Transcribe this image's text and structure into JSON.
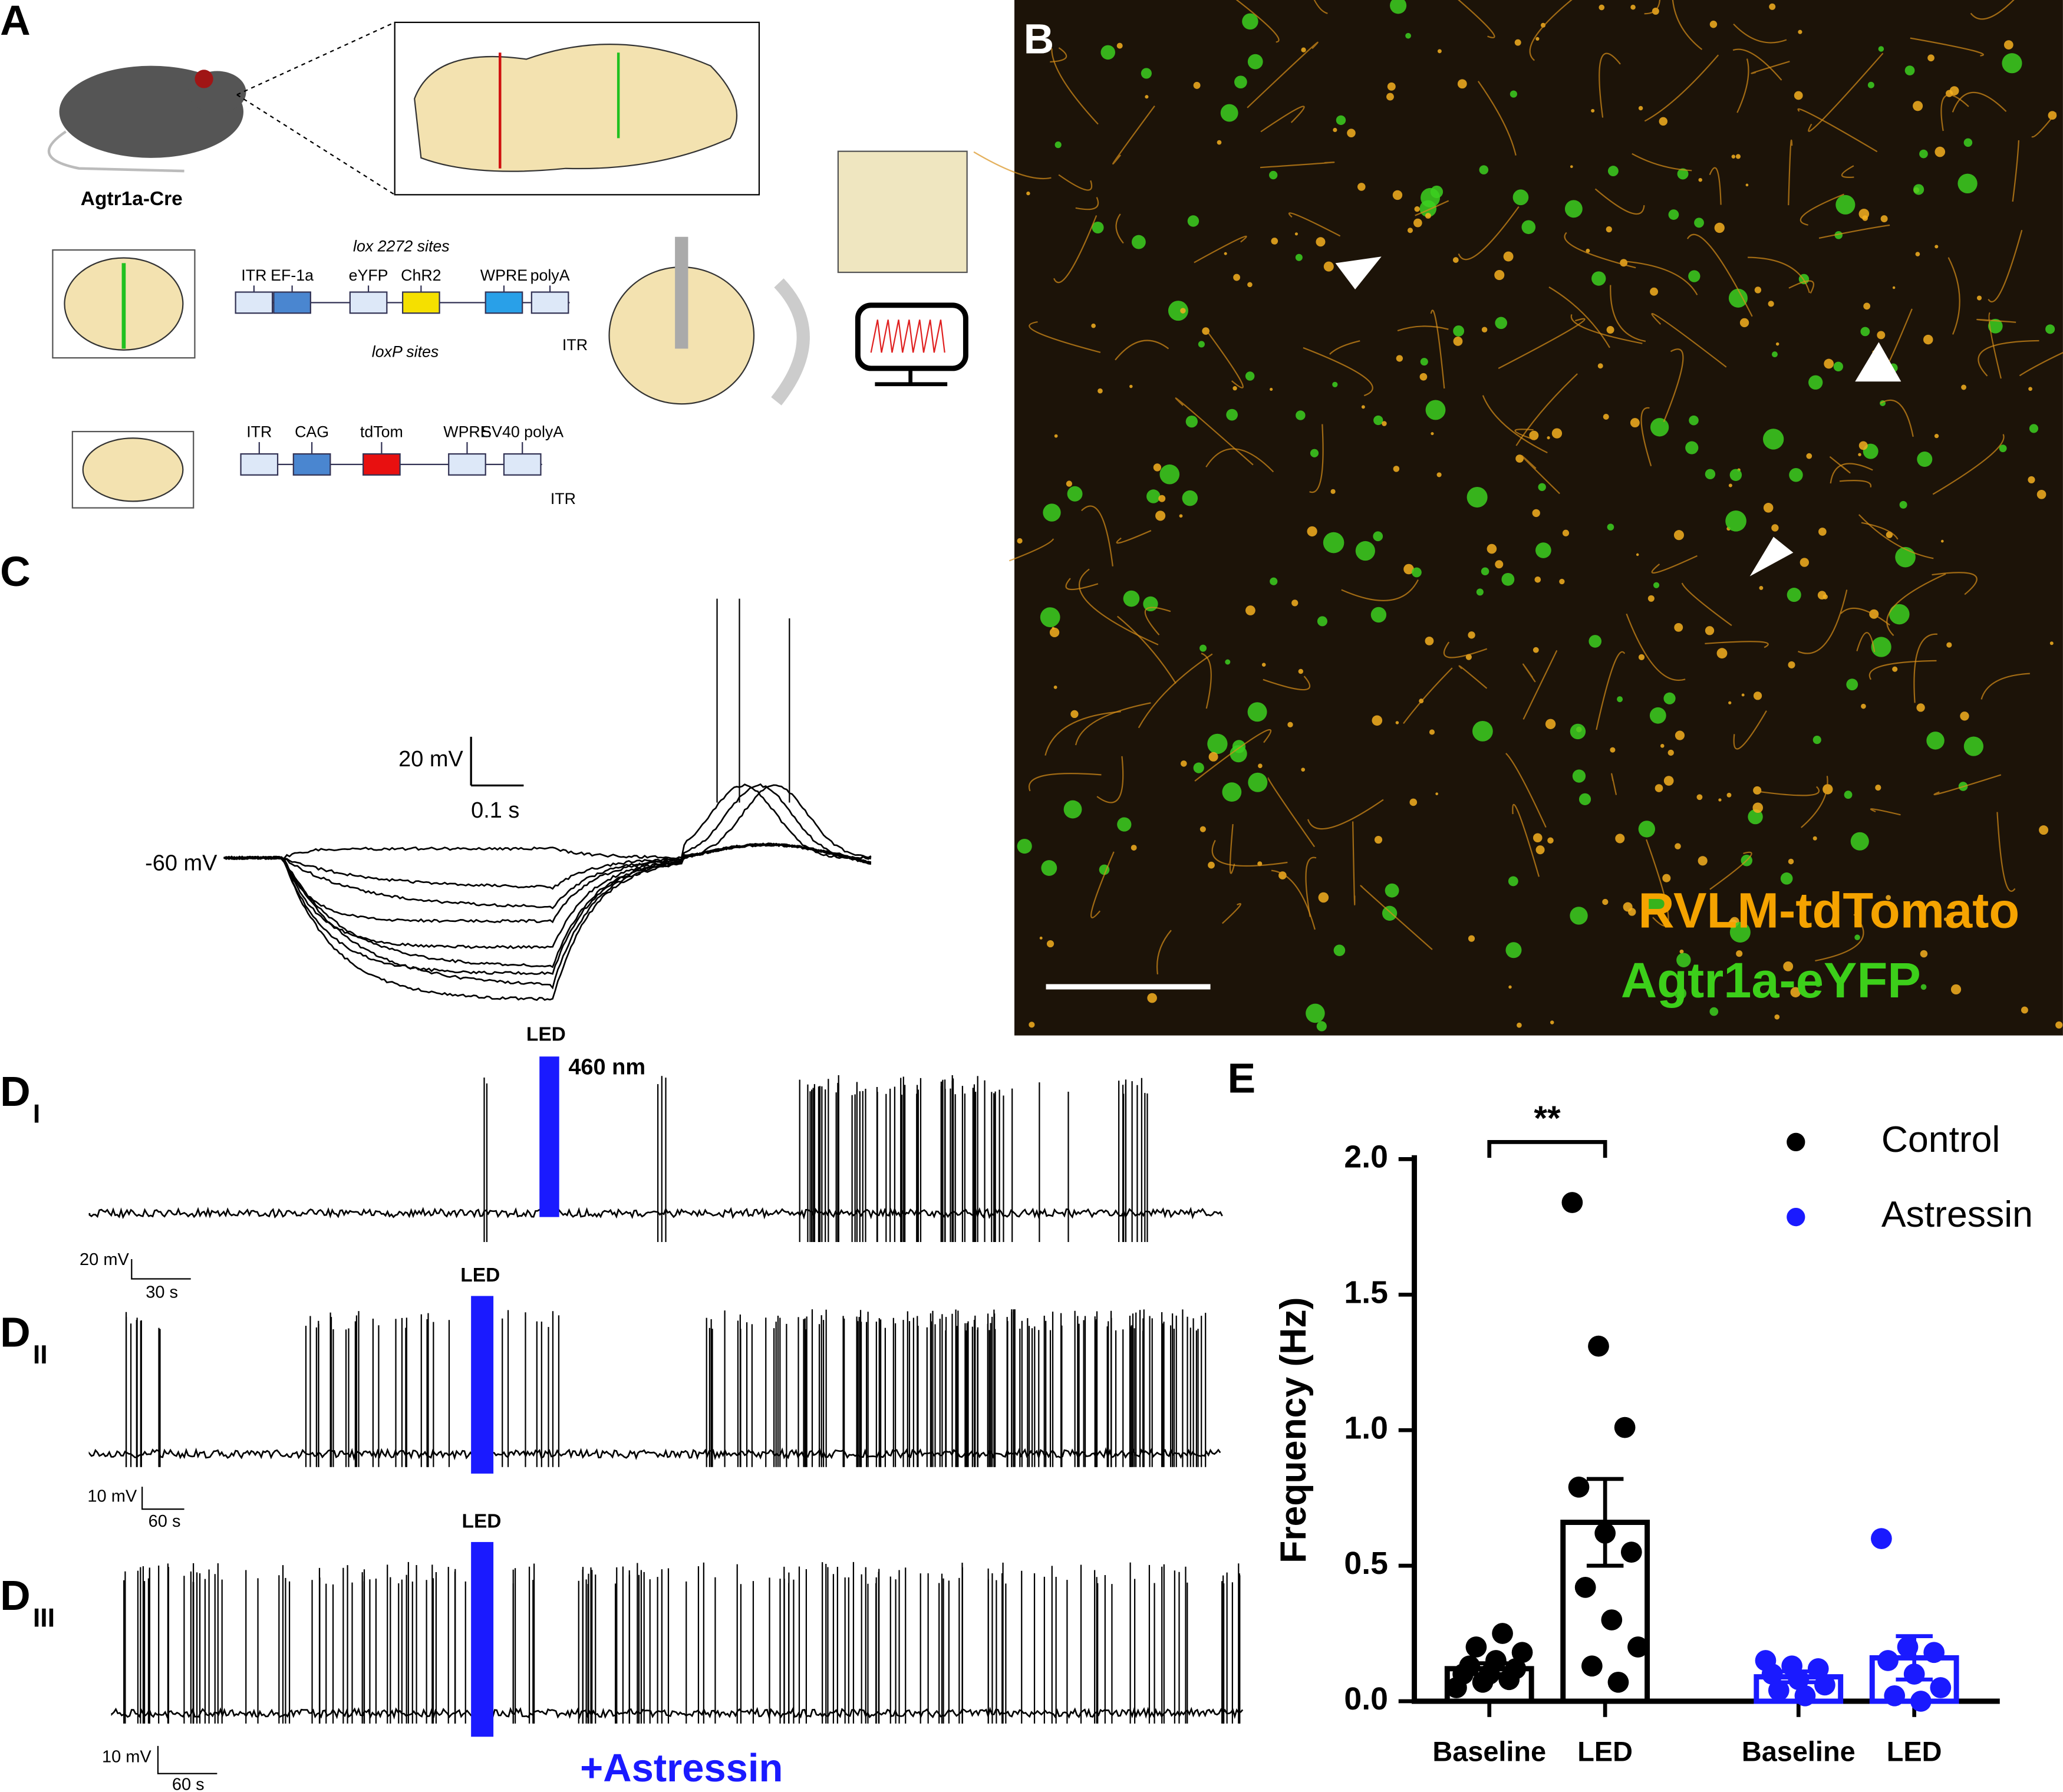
{
  "panels": {
    "a": {
      "label": "A",
      "mouse_label": "Agtr1a-Cre",
      "construct1": {
        "top_note": "lox 2272 sites",
        "elements": [
          "ITR",
          "EF-1a",
          "eYFP",
          "ChR2",
          "WPRE",
          "polyA"
        ],
        "bottom_note": "loxP sites",
        "end": "ITR"
      },
      "construct2": {
        "elements": [
          "ITR",
          "CAG",
          "tdTom",
          "WPRE",
          "SV40 polyA"
        ],
        "end": "ITR"
      }
    },
    "b": {
      "label": "B",
      "legend": [
        "RVLM-tdTomato",
        "Agtr1a-eYFP"
      ]
    },
    "c": {
      "label": "C",
      "scale_v": "20 mV",
      "scale_t": "0.1 s",
      "baseline": "-60 mV"
    },
    "d": [
      {
        "label": "D",
        "sub": "I",
        "stim": "LED",
        "wavelength": "460 nm",
        "scale_v": "20 mV",
        "scale_t": "30 s"
      },
      {
        "label": "D",
        "sub": "II",
        "stim": "LED",
        "scale_v": "10 mV",
        "scale_t": "60 s"
      },
      {
        "label": "D",
        "sub": "III",
        "stim": "LED",
        "scale_v": "10 mV",
        "scale_t": "60 s",
        "drug": "+Astressin"
      }
    ],
    "e": {
      "label": "E"
    }
  },
  "chart_data": {
    "type": "dot-bar",
    "ylabel": "Frequency (Hz)",
    "significance": "**",
    "categories": [
      "Baseline",
      "LED",
      "Baseline",
      "LED"
    ],
    "ylim": [
      0,
      2.0
    ],
    "yticks": [
      {
        "value": 0,
        "label": "0.0"
      },
      0.5,
      {
        "value": 1.0,
        "label": "1.0"
      },
      1.5,
      {
        "value": 2.0,
        "label": "2.0"
      }
    ],
    "series": [
      {
        "name": "Control",
        "color": "#000000",
        "points": [
          [
            0.05,
            0.07,
            0.08,
            0.1,
            0.1,
            0.12,
            0.13,
            0.15,
            0.18,
            0.2,
            0.25
          ],
          [
            1.84,
            1.31,
            1.01,
            0.79,
            0.62,
            0.55,
            0.42,
            0.3,
            0.2,
            0.13,
            0.07
          ]
        ],
        "means": [
          0.12,
          0.66
        ],
        "sems": [
          0.02,
          0.16
        ]
      },
      {
        "name": "Astressin",
        "color": "#1a1aff",
        "points": [
          [
            0.15,
            0.13,
            0.12,
            0.1,
            0.08,
            0.06,
            0.04,
            0.02
          ],
          [
            0.6,
            0.2,
            0.18,
            0.15,
            0.1,
            0.05,
            0.02,
            0.0
          ]
        ],
        "means": [
          0.09,
          0.16
        ],
        "sems": [
          0.02,
          0.08
        ]
      }
    ]
  }
}
